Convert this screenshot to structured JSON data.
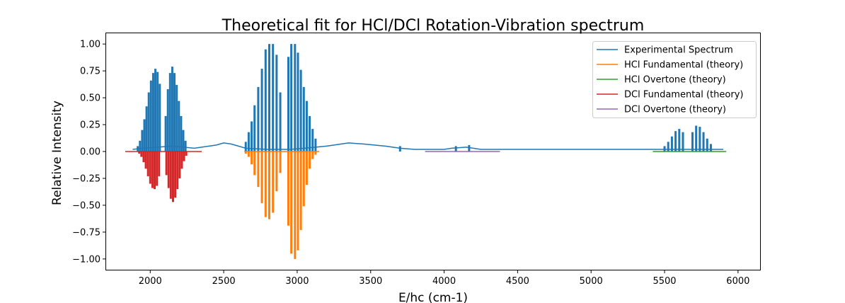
{
  "chart_data": {
    "type": "line",
    "title": "Theoretical fit for HCl/DCl Rotation-Vibration spectrum",
    "xlabel": "E/hc (cm-1)",
    "ylabel": "Relative Intensity",
    "xlim": [
      1700,
      6150
    ],
    "ylim": [
      -1.1,
      1.1
    ],
    "xticks": [
      2000,
      2500,
      3000,
      3500,
      4000,
      4500,
      5000,
      5500,
      6000
    ],
    "yticks": [
      -1.0,
      -0.75,
      -0.5,
      -0.25,
      0.0,
      0.25,
      0.5,
      0.75,
      1.0
    ],
    "xtick_labels": [
      "2000",
      "2500",
      "3000",
      "3500",
      "4000",
      "4500",
      "5000",
      "5500",
      "6000"
    ],
    "ytick_labels": [
      "−1.00",
      "−0.75",
      "−0.50",
      "−0.25",
      "0.00",
      "0.25",
      "0.50",
      "0.75",
      "1.00"
    ],
    "grid": false,
    "legend_position": "top-right",
    "series": [
      {
        "name": "Experimental Spectrum",
        "color": "#1f77b4",
        "baseline_x": [
          1880,
          1950,
          2050,
          2150,
          2300,
          2450,
          2500,
          2550,
          2650,
          2800,
          2950,
          3050,
          3200,
          3300,
          3350,
          3450,
          3600,
          3700,
          3800,
          3900,
          4000,
          4050,
          4150,
          4250,
          4400,
          4700,
          5000,
          5300,
          5500,
          5700,
          5900
        ],
        "baseline_y": [
          0.02,
          0.03,
          0.04,
          0.05,
          0.03,
          0.06,
          0.08,
          0.07,
          0.03,
          0.02,
          0.02,
          0.03,
          0.05,
          0.07,
          0.08,
          0.07,
          0.05,
          0.03,
          0.02,
          0.02,
          0.02,
          0.03,
          0.04,
          0.02,
          0.02,
          0.02,
          0.02,
          0.02,
          0.02,
          0.02,
          0.02
        ],
        "lines": [
          {
            "x": 1915,
            "y": 0.05
          },
          {
            "x": 1930,
            "y": 0.1
          },
          {
            "x": 1945,
            "y": 0.2
          },
          {
            "x": 1960,
            "y": 0.3
          },
          {
            "x": 1975,
            "y": 0.42
          },
          {
            "x": 1990,
            "y": 0.55
          },
          {
            "x": 2005,
            "y": 0.66
          },
          {
            "x": 2020,
            "y": 0.73
          },
          {
            "x": 2035,
            "y": 0.77
          },
          {
            "x": 2050,
            "y": 0.74
          },
          {
            "x": 2065,
            "y": 0.63
          },
          {
            "x": 2105,
            "y": 0.33
          },
          {
            "x": 2120,
            "y": 0.58
          },
          {
            "x": 2135,
            "y": 0.73
          },
          {
            "x": 2150,
            "y": 0.79
          },
          {
            "x": 2165,
            "y": 0.73
          },
          {
            "x": 2180,
            "y": 0.62
          },
          {
            "x": 2195,
            "y": 0.47
          },
          {
            "x": 2210,
            "y": 0.33
          },
          {
            "x": 2225,
            "y": 0.2
          },
          {
            "x": 2240,
            "y": 0.1
          },
          {
            "x": 2650,
            "y": 0.09
          },
          {
            "x": 2670,
            "y": 0.18
          },
          {
            "x": 2690,
            "y": 0.28
          },
          {
            "x": 2710,
            "y": 0.43
          },
          {
            "x": 2735,
            "y": 0.6
          },
          {
            "x": 2760,
            "y": 0.77
          },
          {
            "x": 2785,
            "y": 0.95
          },
          {
            "x": 2810,
            "y": 1.0
          },
          {
            "x": 2835,
            "y": 1.0
          },
          {
            "x": 2860,
            "y": 0.9
          },
          {
            "x": 2885,
            "y": 0.55
          },
          {
            "x": 2940,
            "y": 0.88
          },
          {
            "x": 2960,
            "y": 1.0
          },
          {
            "x": 2985,
            "y": 1.0
          },
          {
            "x": 3005,
            "y": 0.92
          },
          {
            "x": 3025,
            "y": 0.76
          },
          {
            "x": 3045,
            "y": 0.6
          },
          {
            "x": 3065,
            "y": 0.47
          },
          {
            "x": 3085,
            "y": 0.33
          },
          {
            "x": 3105,
            "y": 0.21
          },
          {
            "x": 3125,
            "y": 0.12
          },
          {
            "x": 3700,
            "y": 0.05
          },
          {
            "x": 4080,
            "y": 0.05
          },
          {
            "x": 4170,
            "y": 0.06
          },
          {
            "x": 5500,
            "y": 0.05
          },
          {
            "x": 5525,
            "y": 0.09
          },
          {
            "x": 5550,
            "y": 0.14
          },
          {
            "x": 5575,
            "y": 0.19
          },
          {
            "x": 5600,
            "y": 0.21
          },
          {
            "x": 5625,
            "y": 0.18
          },
          {
            "x": 5690,
            "y": 0.18
          },
          {
            "x": 5715,
            "y": 0.24
          },
          {
            "x": 5740,
            "y": 0.23
          },
          {
            "x": 5765,
            "y": 0.18
          },
          {
            "x": 5790,
            "y": 0.12
          },
          {
            "x": 5815,
            "y": 0.07
          }
        ]
      },
      {
        "name": "HCl Fundamental (theory)",
        "color": "#ff7f0e",
        "x_range": [
          2640,
          3150
        ],
        "lines": [
          {
            "x": 2650,
            "y": -0.02
          },
          {
            "x": 2670,
            "y": -0.05
          },
          {
            "x": 2690,
            "y": -0.12
          },
          {
            "x": 2710,
            "y": -0.22
          },
          {
            "x": 2735,
            "y": -0.33
          },
          {
            "x": 2760,
            "y": -0.48
          },
          {
            "x": 2785,
            "y": -0.61
          },
          {
            "x": 2810,
            "y": -0.63
          },
          {
            "x": 2835,
            "y": -0.57
          },
          {
            "x": 2860,
            "y": -0.37
          },
          {
            "x": 2885,
            "y": -0.2
          },
          {
            "x": 2940,
            "y": -0.69
          },
          {
            "x": 2960,
            "y": -0.95
          },
          {
            "x": 2985,
            "y": -1.0
          },
          {
            "x": 3005,
            "y": -0.92
          },
          {
            "x": 3025,
            "y": -0.73
          },
          {
            "x": 3045,
            "y": -0.51
          },
          {
            "x": 3065,
            "y": -0.31
          },
          {
            "x": 3085,
            "y": -0.16
          },
          {
            "x": 3105,
            "y": -0.07
          },
          {
            "x": 3125,
            "y": -0.03
          }
        ]
      },
      {
        "name": "HCl Overtone (theory)",
        "color": "#2ca02c",
        "x_range": [
          5420,
          5920
        ],
        "lines": []
      },
      {
        "name": "DCl Fundamental (theory)",
        "color": "#d62728",
        "x_range": [
          1830,
          2350
        ],
        "lines": [
          {
            "x": 1925,
            "y": -0.02
          },
          {
            "x": 1940,
            "y": -0.05
          },
          {
            "x": 1955,
            "y": -0.1
          },
          {
            "x": 1970,
            "y": -0.16
          },
          {
            "x": 1985,
            "y": -0.23
          },
          {
            "x": 2000,
            "y": -0.3
          },
          {
            "x": 2015,
            "y": -0.34
          },
          {
            "x": 2030,
            "y": -0.35
          },
          {
            "x": 2045,
            "y": -0.32
          },
          {
            "x": 2060,
            "y": -0.23
          },
          {
            "x": 2110,
            "y": -0.22
          },
          {
            "x": 2125,
            "y": -0.34
          },
          {
            "x": 2140,
            "y": -0.44
          },
          {
            "x": 2155,
            "y": -0.47
          },
          {
            "x": 2170,
            "y": -0.43
          },
          {
            "x": 2185,
            "y": -0.35
          },
          {
            "x": 2200,
            "y": -0.25
          },
          {
            "x": 2215,
            "y": -0.16
          },
          {
            "x": 2230,
            "y": -0.09
          },
          {
            "x": 2245,
            "y": -0.04
          }
        ]
      },
      {
        "name": "DCl Overtone (theory)",
        "color": "#9467bd",
        "x_range": [
          3870,
          4380
        ],
        "lines": []
      }
    ]
  }
}
